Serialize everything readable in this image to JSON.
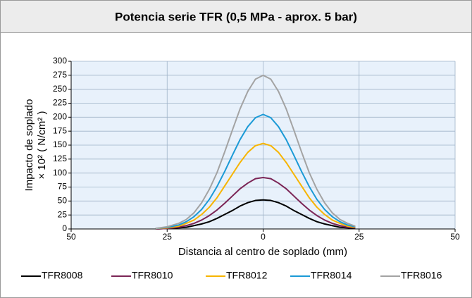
{
  "chart_data": {
    "type": "line",
    "title": "Potencia serie TFR (0,5 MPa - aprox. 5 bar)",
    "x_label": "Distancia al centro de soplado (mm)",
    "y_label": [
      "Impacto de soplado",
      "× 10² ( N/cm² )"
    ],
    "x": [
      -28,
      -25,
      -22,
      -20,
      -18,
      -16,
      -14,
      -12,
      -10,
      -8,
      -6,
      -4,
      -2,
      0,
      2,
      4,
      6,
      8,
      10,
      12,
      14,
      16,
      18,
      20,
      22,
      24
    ],
    "series": [
      {
        "name": "TFR8008",
        "color": "#000000",
        "values": [
          0,
          1,
          2,
          3,
          6,
          9,
          13,
          19,
          26,
          33,
          41,
          47,
          51,
          52,
          51,
          47,
          41,
          33,
          26,
          19,
          13,
          9,
          6,
          3,
          2,
          1
        ]
      },
      {
        "name": "TFR8010",
        "color": "#7b2556",
        "values": [
          0,
          1,
          3,
          6,
          10,
          16,
          24,
          34,
          46,
          59,
          72,
          82,
          90,
          92,
          90,
          82,
          72,
          59,
          46,
          34,
          24,
          16,
          10,
          6,
          3,
          2
        ]
      },
      {
        "name": "TFR8012",
        "color": "#f7b500",
        "values": [
          1,
          2,
          5,
          10,
          16,
          26,
          39,
          56,
          77,
          98,
          119,
          137,
          149,
          153,
          149,
          137,
          119,
          98,
          77,
          56,
          39,
          26,
          16,
          10,
          5,
          3
        ]
      },
      {
        "name": "TFR8014",
        "color": "#1b9ad6",
        "values": [
          1,
          3,
          7,
          13,
          22,
          35,
          53,
          76,
          103,
          132,
          160,
          183,
          199,
          205,
          199,
          183,
          160,
          132,
          103,
          76,
          53,
          35,
          22,
          13,
          7,
          4
        ]
      },
      {
        "name": "TFR8016",
        "color": "#a3a3a3",
        "values": [
          1,
          4,
          10,
          17,
          29,
          47,
          71,
          101,
          138,
          177,
          215,
          246,
          268,
          275,
          268,
          246,
          215,
          177,
          138,
          101,
          71,
          47,
          29,
          17,
          10,
          5
        ]
      }
    ],
    "xlim": [
      -50,
      50
    ],
    "xticks": [
      {
        "value": -50,
        "label": "50"
      },
      {
        "value": -25,
        "label": "25"
      },
      0,
      25,
      50
    ],
    "ylim": [
      0,
      300
    ],
    "yticks": [
      0,
      25,
      50,
      75,
      100,
      125,
      150,
      175,
      200,
      225,
      250,
      275,
      300
    ],
    "grid": true,
    "legend": "bottom"
  }
}
